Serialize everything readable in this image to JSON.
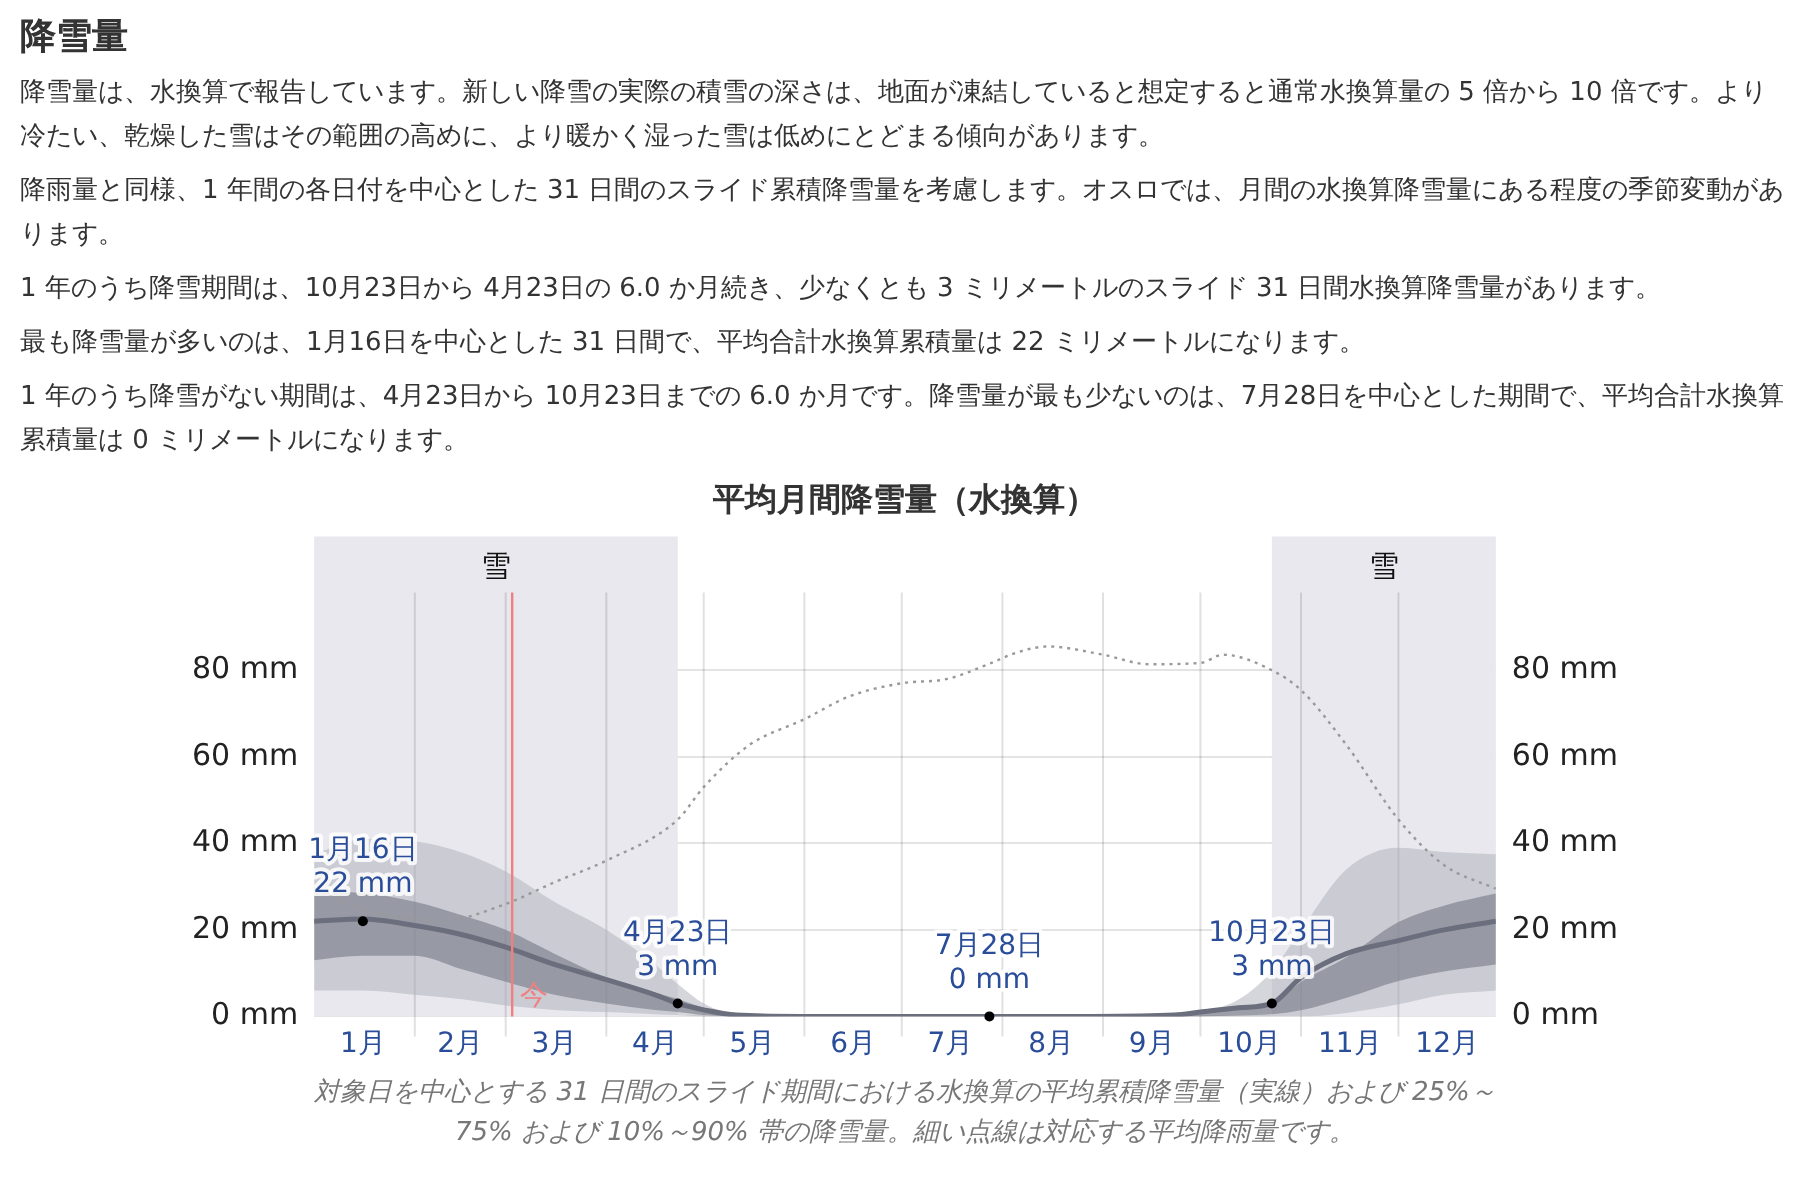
{
  "chart_data": {
    "type": "line",
    "title": "平均月間降雪量（水換算）",
    "annotations": [
      "降雪量",
      "降雪量は、水換算で報告しています。新しい降雪の実際の積雪の深さは、地面が凍結していると想定すると通常水換算量の 5 倍から 10 倍です。より冷たい、乾燥した雪はその範囲の高めに、より暖かく湿った雪は低めにとどまる傾向があります。",
      "降雨量と同様、1 年間の各日付を中心とした 31 日間のスライド累積降雪量を考慮します。オスロでは、月間の水換算降雪量にある程度の季節変動があります。",
      "1 年のうち降雪期間は、10月23日から 4月23日の 6.0 か月続き、少なくとも 3 ミリメートルのスライド 31 日間水換算降雪量があります。",
      "最も降雪量が多いのは、1月16日を中心とした 31 日間で、平均合計水換算累積量は 22 ミリメートルになります。",
      "1 年のうち降雪がない期間は、4月23日から 10月23日までの 6.0 か月です。降雪量が最も少ないのは、7月28日を中心とした期間で、平均合計水換算累積量は 0 ミリメートルになります。",
      {
        "text": "1月16日\n22 mm",
        "x": "--01-16",
        "y": 22
      },
      {
        "text": "4月23日\n3 mm",
        "x": "--04-23",
        "y": 3
      },
      {
        "text": "7月28日\n0 mm",
        "x": "--07-28",
        "y": 0
      },
      {
        "text": "10月23日\n3 mm",
        "x": "--10-23",
        "y": 3
      },
      "対象日を中心とする 31 日間のスライド期間における水換算の平均累積降雪量（実線）および 25%～75% および 10%～90% 帯の降雪量。細い点線は対応する平均降雨量です。"
    ],
    "xlim": [
      "--01-01",
      "--12-31"
    ],
    "xticks": [
      {
        "value": "--01-16",
        "label": "1月"
      },
      {
        "value": "--02-01",
        "label": null
      },
      {
        "value": "--02-15",
        "label": "2月"
      },
      {
        "value": "--03-01",
        "label": null
      },
      {
        "value": "--03-16",
        "label": "3月"
      },
      {
        "value": "--04-01",
        "label": null
      },
      {
        "value": "--04-16",
        "label": "4月"
      },
      {
        "value": "--05-01",
        "label": null
      },
      {
        "value": "--05-16",
        "label": "5月"
      },
      {
        "value": "--06-01",
        "label": null
      },
      {
        "value": "--06-16",
        "label": "6月"
      },
      {
        "value": "--07-01",
        "label": null
      },
      {
        "value": "--07-16",
        "label": "7月"
      },
      {
        "value": "--08-01",
        "label": null
      },
      {
        "value": "--08-16",
        "label": "8月"
      },
      {
        "value": "--09-01",
        "label": null
      },
      {
        "value": "--09-16",
        "label": "9月"
      },
      {
        "value": "--10-01",
        "label": null
      },
      {
        "value": "--10-16",
        "label": "10月"
      },
      {
        "value": "--11-01",
        "label": null
      },
      {
        "value": "--11-16",
        "label": "11月"
      },
      {
        "value": "--12-01",
        "label": null
      },
      {
        "value": "--12-16",
        "label": "12月"
      }
    ],
    "ylim": [
      0,
      98
    ],
    "yticks": [
      {
        "value": 0,
        "label": "0 mm"
      },
      {
        "value": 20,
        "label": "20 mm"
      },
      {
        "value": 40,
        "label": "40 mm"
      },
      {
        "value": 60,
        "label": "60 mm"
      },
      {
        "value": 80,
        "label": "80 mm"
      }
    ],
    "y2lim": [
      0,
      98
    ],
    "y2ticks": [
      {
        "value": 0,
        "label": "0 mm"
      },
      {
        "value": 20,
        "label": "20 mm"
      },
      {
        "value": 40,
        "label": "40 mm"
      },
      {
        "value": 60,
        "label": "60 mm"
      },
      {
        "value": 80,
        "label": "80 mm"
      }
    ],
    "grid": true,
    "legend": false,
    "marker": "none",
    "bands": [
      {
        "axis": "x",
        "from": "--01-01",
        "to": "--04-23",
        "label": "雪",
        "color": "#e8e8ee"
      },
      {
        "axis": "x",
        "from": "--10-23",
        "to": "--12-31",
        "label": "雪",
        "color": "#e8e8ee"
      }
    ],
    "ref_lines": [
      {
        "axis": "x",
        "value": "--03-03",
        "label": "今",
        "color": "#f08080"
      }
    ],
    "x": [
      "--01-01",
      "--01-16",
      "--02-01",
      "--02-15",
      "--03-01",
      "--03-16",
      "--04-01",
      "--04-16",
      "--04-23",
      "--05-01",
      "--05-11",
      "--05-31",
      "--07-01",
      "--07-28",
      "--08-29",
      "--09-23",
      "--10-01",
      "--10-13",
      "--10-23",
      "--11-01",
      "--11-15",
      "--12-01",
      "--12-15",
      "--12-31"
    ],
    "series": [
      {
        "type": "line",
        "color": "#b0b2bb",
        "values": [
          null,
          null,
          null,
          null,
          null,
          null,
          null,
          null,
          null,
          null,
          null,
          null,
          null,
          null,
          null,
          null,
          null,
          null,
          null,
          null,
          null,
          null,
          null,
          null
        ],
        "lower": [
          6,
          6,
          5,
          4,
          2.5,
          1.5,
          1,
          0.5,
          0.3,
          0,
          0,
          0,
          0,
          0,
          0,
          0,
          0,
          0,
          0,
          0,
          0.8,
          2.8,
          5,
          6
        ],
        "upper": [
          37.5,
          41,
          40.5,
          38,
          33.5,
          26.5,
          20,
          12,
          7.5,
          3,
          0.5,
          0,
          0,
          0,
          0,
          0.5,
          1,
          4,
          10.5,
          20,
          34,
          39,
          38,
          37.5
        ]
      },
      {
        "type": "line",
        "color": "#6b6e7c",
        "line_style": "solid",
        "values": [
          22,
          22.5,
          21,
          19,
          16,
          12,
          8.5,
          5,
          3,
          1.5,
          0.3,
          0,
          0,
          0,
          0,
          0.3,
          1,
          2,
          3,
          9,
          14.5,
          17.5,
          20,
          22
        ],
        "lower": [
          13,
          14,
          14,
          11,
          8,
          5,
          3,
          1.5,
          1,
          0.3,
          0,
          0,
          0,
          0,
          0,
          0,
          0,
          0.2,
          0.5,
          1.4,
          4.3,
          8.2,
          10.4,
          12
        ],
        "upper": [
          29,
          28.5,
          26.5,
          23.5,
          20,
          14.5,
          9,
          5.5,
          4,
          2,
          0.5,
          0,
          0,
          0,
          0,
          0.5,
          1.2,
          2.5,
          3,
          8,
          13.7,
          21.8,
          25.6,
          28.4
        ]
      },
      {
        "type": "line",
        "color": "#999999",
        "line_style": "dotted",
        "x": [
          "--01-01",
          "--01-16",
          "--02-01",
          "--02-10",
          "--03-01",
          "--03-16",
          "--04-01",
          "--04-23",
          "--05-01",
          "--05-15",
          "--06-01",
          "--06-15",
          "--07-01",
          "--07-15",
          "--07-28",
          "--08-05",
          "--08-15",
          "--09-01",
          "--09-15",
          "--10-01",
          "--10-08",
          "--10-23",
          "--11-01",
          "--11-15",
          "--12-01",
          "--12-15",
          "--12-31"
        ],
        "values": [
          29.4,
          24.8,
          22.4,
          22.2,
          26,
          31,
          36,
          45.5,
          53,
          62.7,
          68.7,
          74,
          77,
          78,
          81.5,
          84,
          85.5,
          83.6,
          81.4,
          81.7,
          83.6,
          80,
          75.4,
          62.7,
          45.5,
          35,
          29.5
        ]
      }
    ]
  }
}
